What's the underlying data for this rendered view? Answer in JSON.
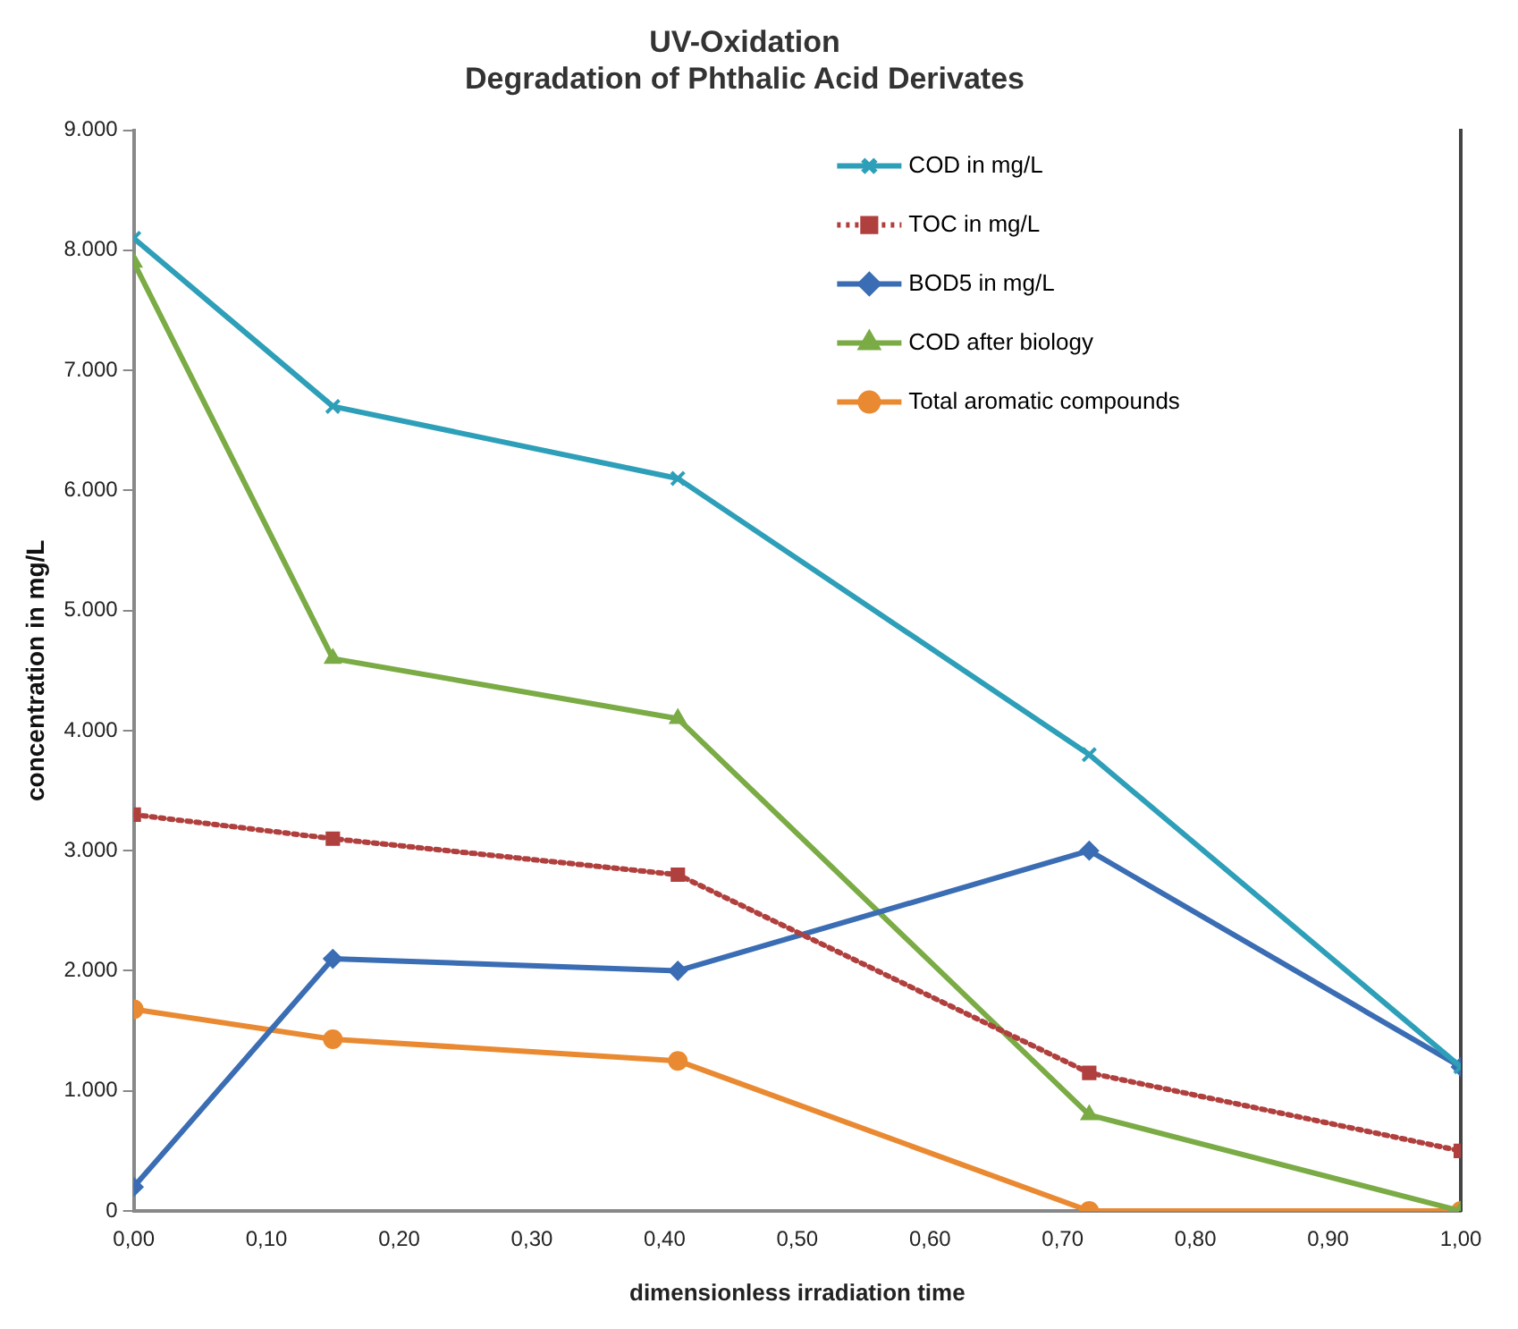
{
  "chart_data": {
    "type": "line",
    "title": "UV-Oxidation\nDegradation of Phthalic Acid Derivates",
    "xlabel": "dimensionless irradiation time",
    "ylabel": "concentration in mg/L",
    "x": [
      0,
      0.15,
      0.41,
      0.72,
      1.0
    ],
    "series": [
      {
        "name": "COD in mg/L",
        "color": "#2e9fb8",
        "values": [
          8100,
          6700,
          6100,
          3800,
          1200
        ],
        "marker": "cross",
        "line_style": "solid"
      },
      {
        "name": "TOC in mg/L",
        "color": "#b0403e",
        "values": [
          3300,
          3100,
          2800,
          1150,
          500
        ],
        "marker": "square",
        "line_style": "dotted"
      },
      {
        "name": "BOD5 in mg/L",
        "color": "#3a6db3",
        "values": [
          200,
          2100,
          2000,
          3000,
          1200
        ],
        "marker": "diamond",
        "line_style": "solid"
      },
      {
        "name": "COD after biology",
        "color": "#7aab45",
        "values": [
          7900,
          4600,
          4100,
          800,
          0
        ],
        "marker": "triangle",
        "line_style": "solid"
      },
      {
        "name": "Total aromatic compounds",
        "color": "#e98a32",
        "values": [
          1680,
          1430,
          1250,
          0,
          0
        ],
        "marker": "circle",
        "line_style": "solid"
      }
    ],
    "xlim": [
      0,
      1
    ],
    "xticks": [
      {
        "value": 0,
        "label": "0,00"
      },
      {
        "value": 0.1,
        "label": "0,10"
      },
      {
        "value": 0.2,
        "label": "0,20"
      },
      {
        "value": 0.3,
        "label": "0,30"
      },
      {
        "value": 0.4,
        "label": "0,40"
      },
      {
        "value": 0.5,
        "label": "0,50"
      },
      {
        "value": 0.6,
        "label": "0,60"
      },
      {
        "value": 0.7,
        "label": "0,70"
      },
      {
        "value": 0.8,
        "label": "0,80"
      },
      {
        "value": 0.9,
        "label": "0,90"
      },
      {
        "value": 1,
        "label": "1,00"
      }
    ],
    "ylim": [
      0,
      9000
    ],
    "yticks": [
      0,
      {
        "value": 1000,
        "label": "1.000"
      },
      {
        "value": 2000,
        "label": "2.000"
      },
      {
        "value": 3000,
        "label": "3.000"
      },
      {
        "value": 4000,
        "label": "4.000"
      },
      {
        "value": 5000,
        "label": "5.000"
      },
      {
        "value": 6000,
        "label": "6.000"
      },
      {
        "value": 7000,
        "label": "7.000"
      },
      {
        "value": 8000,
        "label": "8.000"
      },
      {
        "value": 9000,
        "label": "9.000"
      }
    ],
    "grid": false,
    "legend": "top right"
  }
}
